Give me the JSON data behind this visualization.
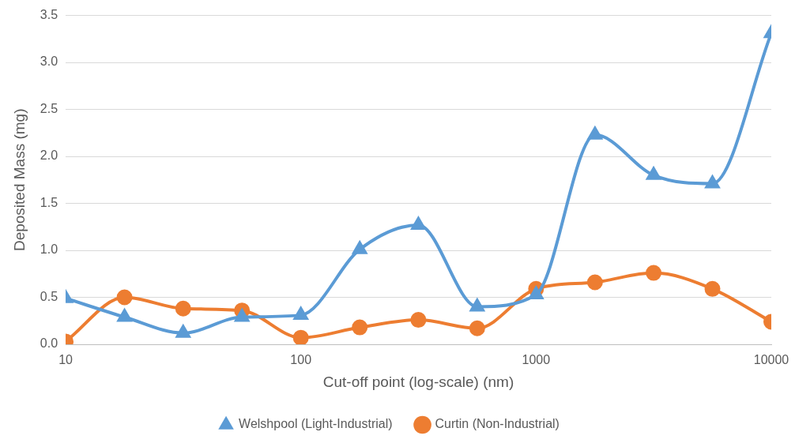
{
  "chart_data": {
    "type": "line",
    "xlabel": "Cut-off point (log-scale) (nm)",
    "ylabel": "Deposited Mass (mg)",
    "x": [
      10,
      17.8,
      31.6,
      56.2,
      100,
      178,
      316,
      562,
      1000,
      1780,
      3160,
      5620,
      10000
    ],
    "series": [
      {
        "name": "Welshpool (Light-Industrial)",
        "color": "#5b9bd5",
        "marker": "triangle",
        "values": [
          0.49,
          0.29,
          0.12,
          0.29,
          0.31,
          1.01,
          1.27,
          0.4,
          0.53,
          2.23,
          1.8,
          1.71,
          3.31
        ]
      },
      {
        "name": "Curtin (Non-Industrial)",
        "color": "#ed7d31",
        "marker": "circle",
        "values": [
          0.03,
          0.5,
          0.38,
          0.36,
          0.07,
          0.18,
          0.26,
          0.17,
          0.59,
          0.66,
          0.76,
          0.59,
          0.24
        ]
      }
    ],
    "log": "x",
    "xlim": [
      10,
      10000
    ],
    "xticks": [
      10,
      100,
      1000,
      10000
    ],
    "ylim": [
      0,
      3.5
    ],
    "yticks": [
      {
        "value": 0,
        "label": "0.0"
      },
      {
        "value": 0.5,
        "label": "0.5"
      },
      {
        "value": 1,
        "label": "1.0"
      },
      {
        "value": 1.5,
        "label": "1.5"
      },
      {
        "value": 2,
        "label": "2.0"
      },
      {
        "value": 2.5,
        "label": "2.5"
      },
      {
        "value": 3,
        "label": "3.0"
      },
      {
        "value": 3.5,
        "label": "3.5"
      }
    ],
    "grid": "y",
    "legend": "bottom",
    "line_style": "solid"
  }
}
